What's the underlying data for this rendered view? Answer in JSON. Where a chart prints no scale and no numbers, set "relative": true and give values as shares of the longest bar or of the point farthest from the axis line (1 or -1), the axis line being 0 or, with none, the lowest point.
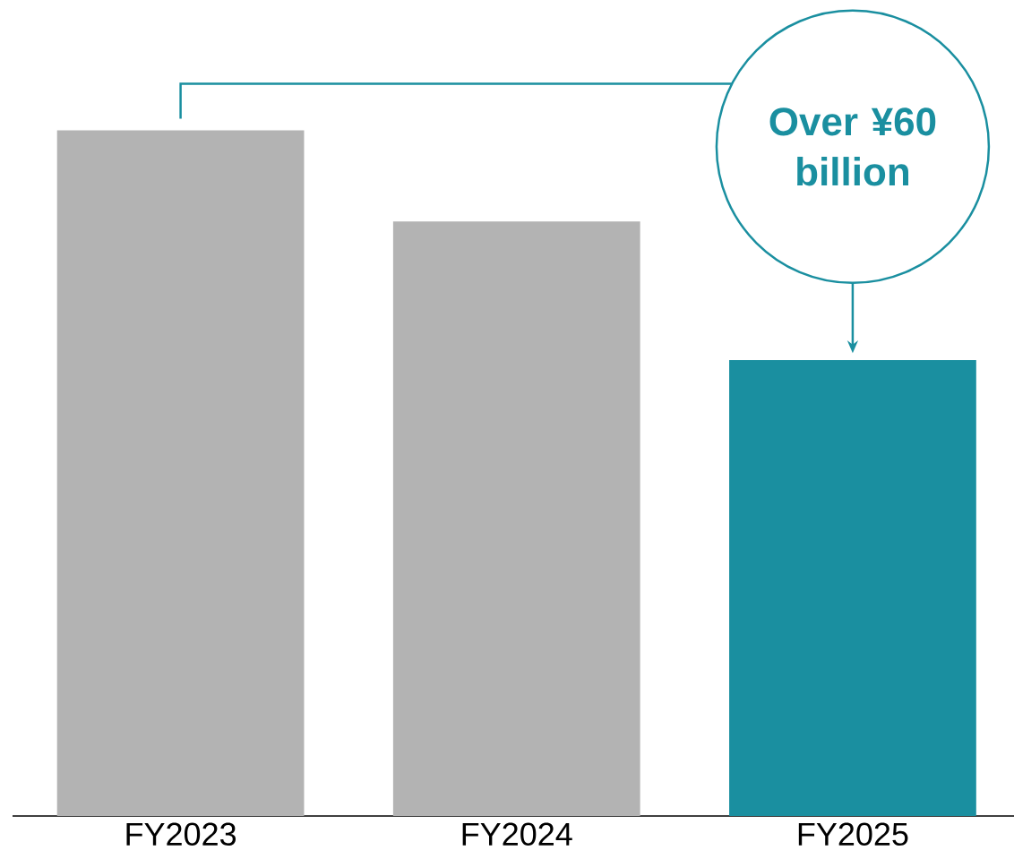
{
  "chart_data": {
    "type": "bar",
    "relative": true,
    "categories": [
      "FY2023",
      "FY2024",
      "FY2025"
    ],
    "values": [
      1,
      0.867,
      0.665
    ],
    "colors": [
      "#b3b3b3",
      "#b3b3b3",
      "#1a8fa0"
    ],
    "annotations": [
      "Over ¥60 billion"
    ]
  }
}
